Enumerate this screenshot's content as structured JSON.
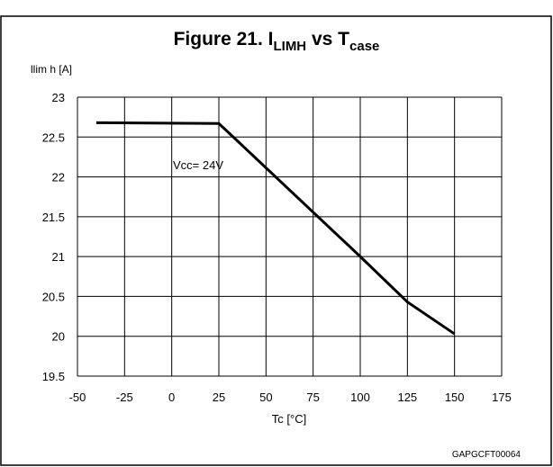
{
  "chart_data": {
    "type": "line",
    "title_parts": [
      "Figure 21. I",
      "LIMH",
      " vs T",
      "case"
    ],
    "y_label": "llim h [A]",
    "x_label": "Tc [°C]",
    "annotation": "Vcc= 24V",
    "code": "GAPGCFT00064",
    "x": [
      -40,
      25,
      100,
      125,
      150
    ],
    "series": [
      {
        "name": "Vcc= 24V",
        "color": "#000000",
        "values": [
          22.68,
          22.67,
          21.0,
          20.43,
          20.03
        ]
      }
    ],
    "xlim": [
      -50,
      175
    ],
    "xticks": [
      -50,
      -25,
      0,
      25,
      50,
      75,
      100,
      125,
      150,
      175
    ],
    "ylim": [
      19.5,
      23
    ],
    "yticks": [
      23,
      22.5,
      22,
      21.5,
      21,
      20.5,
      20,
      19.5
    ],
    "grid": true
  }
}
